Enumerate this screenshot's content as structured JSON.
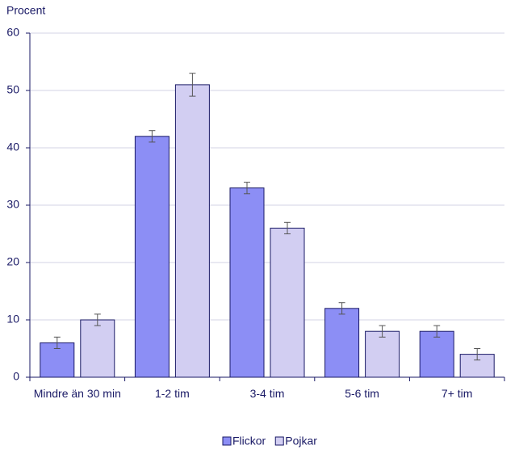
{
  "chart_data": {
    "type": "bar",
    "y_label": "Procent",
    "categories": [
      "Mindre än 30 min",
      "1-2 tim",
      "3-4 tim",
      "5-6 tim",
      "7+ tim"
    ],
    "series": [
      {
        "name": "Flickor",
        "color": "#8c8ef5",
        "values": [
          6,
          42,
          33,
          12,
          8
        ],
        "errors": [
          1,
          1,
          1,
          1,
          1
        ]
      },
      {
        "name": "Pojkar",
        "color": "#d2cef2",
        "values": [
          10,
          51,
          26,
          8,
          4
        ],
        "errors": [
          1,
          2,
          1,
          1,
          1
        ]
      }
    ],
    "ylim": [
      0,
      60
    ],
    "yticks": [
      0,
      10,
      20,
      30,
      40,
      50,
      60
    ],
    "grid": true
  }
}
